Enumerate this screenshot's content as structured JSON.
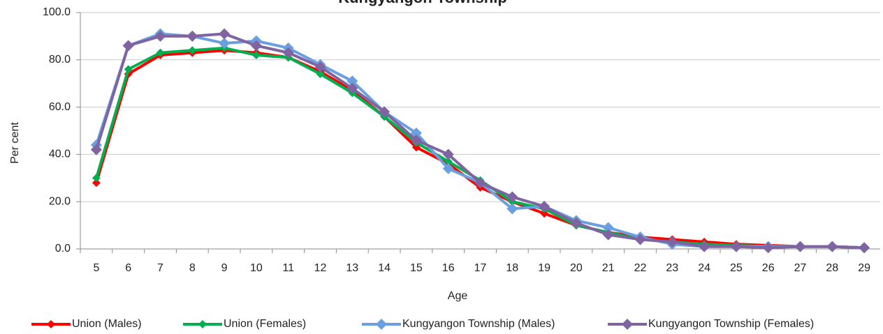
{
  "chart_data": {
    "type": "line",
    "title": "Kungyangon Township",
    "xlabel": "Age",
    "ylabel": "Per cent",
    "categories": [
      "5",
      "6",
      "7",
      "8",
      "9",
      "10",
      "11",
      "12",
      "13",
      "14",
      "15",
      "16",
      "17",
      "18",
      "19",
      "20",
      "21",
      "22",
      "23",
      "24",
      "25",
      "26",
      "27",
      "28",
      "29"
    ],
    "series": [
      {
        "name": "Union (Males)",
        "color": "#ff0000",
        "values": [
          28,
          74,
          82,
          83,
          84,
          83,
          81,
          75,
          67,
          56,
          43,
          36,
          26,
          20,
          15,
          10,
          7,
          5,
          4,
          3,
          2,
          1.5,
          1,
          1,
          0.5
        ]
      },
      {
        "name": "Union (Females)",
        "color": "#00b050",
        "values": [
          30,
          76,
          83,
          84,
          85,
          82,
          81,
          74,
          66,
          56,
          45,
          37,
          29,
          20,
          17,
          10,
          7,
          4,
          3,
          2,
          1.5,
          1,
          1,
          1,
          0.5
        ]
      },
      {
        "name": "Kungyangon Township (Males)",
        "color": "#6a9fe0",
        "values": [
          44,
          86,
          91,
          90,
          87,
          88,
          85,
          78,
          71,
          58,
          49,
          34,
          28,
          17,
          18,
          12,
          9,
          5,
          2,
          1,
          1,
          1,
          1,
          1,
          0.5
        ]
      },
      {
        "name": "Kungyangon Township (Females)",
        "color": "#8064a2",
        "values": [
          42,
          86,
          90,
          90,
          91,
          86,
          83,
          77,
          68,
          58,
          46,
          40,
          28,
          22,
          18,
          11,
          6,
          4,
          3,
          1,
          1,
          0.5,
          1,
          1,
          0.5
        ]
      }
    ],
    "ylim": [
      0,
      100
    ],
    "yticks": [
      {
        "value": 0,
        "label": "0.0"
      },
      {
        "value": 20,
        "label": "20.0"
      },
      {
        "value": 40,
        "label": "40.0"
      },
      {
        "value": 60,
        "label": "60.0"
      },
      {
        "value": 80,
        "label": "80.0"
      },
      {
        "value": 100,
        "label": "100.0"
      }
    ],
    "grid": true,
    "legend": "bottom"
  }
}
